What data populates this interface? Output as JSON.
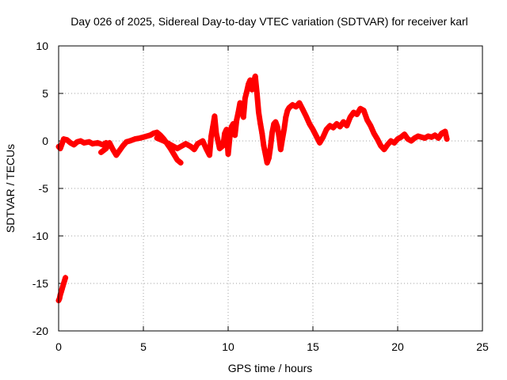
{
  "chart_data": {
    "type": "scatter",
    "title": "Day 026 of 2025, Sidereal Day-to-day VTEC variation (SDTVAR) for receiver karl",
    "xlabel": "GPS time / hours",
    "ylabel": "SDTVAR / TECUs",
    "xlim": [
      0,
      25
    ],
    "ylim": [
      -20,
      10
    ],
    "xticks": [
      0,
      5,
      10,
      15,
      20,
      25
    ],
    "yticks": [
      -20,
      -15,
      -10,
      -5,
      0,
      5,
      10
    ],
    "xtick_labels": [
      "0",
      "5",
      "10",
      "15",
      "20",
      "25"
    ],
    "ytick_labels": [
      "-20",
      "-15",
      "-10",
      "-5",
      "0",
      "5",
      "10"
    ],
    "grid": true,
    "marker": "+",
    "series": [
      {
        "name": "SDTVAR",
        "color": "#ff0000",
        "points": [
          [
            0.0,
            -16.8
          ],
          [
            0.05,
            -16.6
          ],
          [
            0.1,
            -16.2
          ],
          [
            0.15,
            -15.9
          ],
          [
            0.2,
            -15.6
          ],
          [
            0.25,
            -15.3
          ],
          [
            0.3,
            -15.0
          ],
          [
            0.35,
            -14.7
          ],
          [
            0.4,
            -14.4
          ],
          [
            0.0,
            -0.6
          ],
          [
            0.1,
            -0.8
          ],
          [
            0.2,
            -0.3
          ],
          [
            0.3,
            0.2
          ],
          [
            0.5,
            0.1
          ],
          [
            0.7,
            -0.2
          ],
          [
            0.9,
            -0.4
          ],
          [
            1.1,
            -0.1
          ],
          [
            1.3,
            0.0
          ],
          [
            1.5,
            -0.2
          ],
          [
            1.8,
            -0.1
          ],
          [
            2.0,
            -0.3
          ],
          [
            2.3,
            -0.2
          ],
          [
            2.6,
            -0.4
          ],
          [
            2.8,
            -0.2
          ],
          [
            2.5,
            -1.2
          ],
          [
            2.8,
            -0.8
          ],
          [
            3.0,
            -0.2
          ],
          [
            3.2,
            -0.9
          ],
          [
            3.4,
            -1.5
          ],
          [
            3.6,
            -1.0
          ],
          [
            3.8,
            -0.5
          ],
          [
            4.0,
            -0.1
          ],
          [
            4.2,
            0.0
          ],
          [
            4.5,
            0.2
          ],
          [
            4.8,
            0.3
          ],
          [
            5.0,
            0.4
          ],
          [
            5.2,
            0.5
          ],
          [
            5.4,
            0.6
          ],
          [
            5.6,
            0.8
          ],
          [
            5.8,
            0.9
          ],
          [
            6.0,
            0.6
          ],
          [
            6.2,
            0.2
          ],
          [
            6.4,
            -0.3
          ],
          [
            6.6,
            -0.8
          ],
          [
            6.8,
            -1.4
          ],
          [
            7.0,
            -2.0
          ],
          [
            7.2,
            -2.3
          ],
          [
            5.8,
            0.3
          ],
          [
            6.2,
            0.0
          ],
          [
            6.6,
            -0.4
          ],
          [
            7.0,
            -0.8
          ],
          [
            7.3,
            -0.5
          ],
          [
            7.5,
            -0.3
          ],
          [
            7.8,
            -0.6
          ],
          [
            8.0,
            -0.9
          ],
          [
            8.2,
            -0.3
          ],
          [
            8.5,
            0.0
          ],
          [
            8.7,
            -0.8
          ],
          [
            8.9,
            -1.5
          ],
          [
            9.0,
            0.5
          ],
          [
            9.1,
            1.5
          ],
          [
            9.2,
            2.6
          ],
          [
            9.3,
            0.8
          ],
          [
            9.5,
            -0.8
          ],
          [
            9.7,
            -0.5
          ],
          [
            9.8,
            0.8
          ],
          [
            9.9,
            1.2
          ],
          [
            10.0,
            -1.4
          ],
          [
            10.1,
            0.4
          ],
          [
            10.2,
            1.5
          ],
          [
            10.3,
            1.8
          ],
          [
            10.4,
            0.6
          ],
          [
            10.5,
            2.2
          ],
          [
            10.6,
            3.0
          ],
          [
            10.7,
            4.0
          ],
          [
            10.8,
            3.2
          ],
          [
            10.9,
            2.5
          ],
          [
            11.0,
            4.5
          ],
          [
            11.1,
            5.2
          ],
          [
            11.2,
            6.0
          ],
          [
            11.3,
            6.4
          ],
          [
            11.4,
            5.4
          ],
          [
            11.5,
            6.2
          ],
          [
            11.6,
            6.8
          ],
          [
            11.7,
            5.0
          ],
          [
            11.8,
            3.0
          ],
          [
            11.9,
            1.8
          ],
          [
            12.0,
            0.8
          ],
          [
            12.1,
            -0.5
          ],
          [
            12.2,
            -1.4
          ],
          [
            12.3,
            -2.3
          ],
          [
            12.4,
            -1.8
          ],
          [
            12.5,
            -0.6
          ],
          [
            12.6,
            0.9
          ],
          [
            12.7,
            1.8
          ],
          [
            12.8,
            2.0
          ],
          [
            12.9,
            1.5
          ],
          [
            13.0,
            0.5
          ],
          [
            13.1,
            -0.9
          ],
          [
            13.2,
            0.2
          ],
          [
            13.3,
            1.2
          ],
          [
            13.4,
            2.5
          ],
          [
            13.5,
            3.2
          ],
          [
            13.6,
            3.5
          ],
          [
            13.8,
            3.8
          ],
          [
            14.0,
            3.6
          ],
          [
            14.2,
            4.0
          ],
          [
            14.4,
            3.3
          ],
          [
            14.6,
            2.6
          ],
          [
            14.8,
            1.8
          ],
          [
            15.0,
            1.2
          ],
          [
            15.2,
            0.5
          ],
          [
            15.4,
            -0.2
          ],
          [
            15.6,
            0.4
          ],
          [
            15.8,
            1.2
          ],
          [
            16.0,
            1.6
          ],
          [
            16.2,
            1.4
          ],
          [
            16.4,
            1.8
          ],
          [
            16.6,
            1.5
          ],
          [
            16.8,
            2.0
          ],
          [
            17.0,
            1.6
          ],
          [
            17.2,
            2.5
          ],
          [
            17.4,
            3.0
          ],
          [
            17.6,
            2.8
          ],
          [
            17.8,
            3.4
          ],
          [
            18.0,
            3.2
          ],
          [
            18.2,
            2.2
          ],
          [
            18.4,
            1.6
          ],
          [
            18.6,
            0.8
          ],
          [
            18.8,
            0.2
          ],
          [
            19.0,
            -0.5
          ],
          [
            19.2,
            -0.9
          ],
          [
            19.4,
            -0.4
          ],
          [
            19.6,
            0.0
          ],
          [
            19.8,
            -0.2
          ],
          [
            20.0,
            0.2
          ],
          [
            20.2,
            0.4
          ],
          [
            20.4,
            0.7
          ],
          [
            20.6,
            0.2
          ],
          [
            20.8,
            0.0
          ],
          [
            21.0,
            0.3
          ],
          [
            21.2,
            0.5
          ],
          [
            21.4,
            0.4
          ],
          [
            21.6,
            0.3
          ],
          [
            21.8,
            0.5
          ],
          [
            22.0,
            0.4
          ],
          [
            22.2,
            0.6
          ],
          [
            22.4,
            0.3
          ],
          [
            22.6,
            0.8
          ],
          [
            22.8,
            1.0
          ],
          [
            22.9,
            0.2
          ]
        ]
      }
    ]
  }
}
